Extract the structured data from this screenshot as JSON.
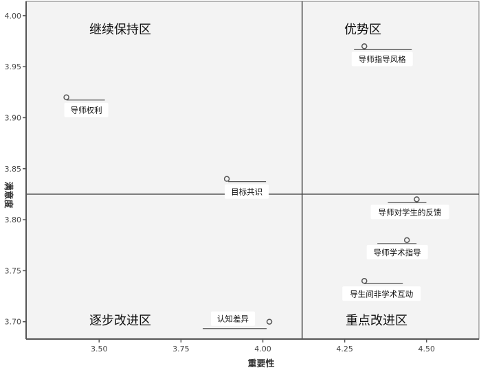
{
  "chart_data": {
    "type": "scatter",
    "xlabel": "重要性",
    "ylabel": "满意度",
    "xlim": [
      3.277,
      4.66
    ],
    "ylim": [
      3.683,
      4.014
    ],
    "xticks": [
      "3.50",
      "3.75",
      "4.00",
      "4.25",
      "4.50"
    ],
    "yticks": [
      "3.70",
      "3.75",
      "3.80",
      "3.85",
      "3.90",
      "3.95",
      "4.00"
    ],
    "grid": false,
    "reference_lines": {
      "x": 4.12,
      "y": 3.825
    },
    "quadrant_labels": {
      "top_left": "继续保持区",
      "top_right": "优势区",
      "bottom_left": "逐步改进区",
      "bottom_right": "重点改进区"
    },
    "points": [
      {
        "label": "导师指导风格",
        "x": 4.31,
        "y": 3.97
      },
      {
        "label": "导师权利",
        "x": 3.4,
        "y": 3.92
      },
      {
        "label": "目标共识",
        "x": 3.89,
        "y": 3.84
      },
      {
        "label": "导师对学生的反馈",
        "x": 4.47,
        "y": 3.82
      },
      {
        "label": "导师学术指导",
        "x": 4.44,
        "y": 3.78
      },
      {
        "label": "导生间非学术互动",
        "x": 4.31,
        "y": 3.74
      },
      {
        "label": "认知差异",
        "x": 4.02,
        "y": 3.7
      }
    ],
    "colors": {
      "plot_bg": "#f3f3f3",
      "axis": "#555555",
      "marker": "#555555"
    }
  }
}
